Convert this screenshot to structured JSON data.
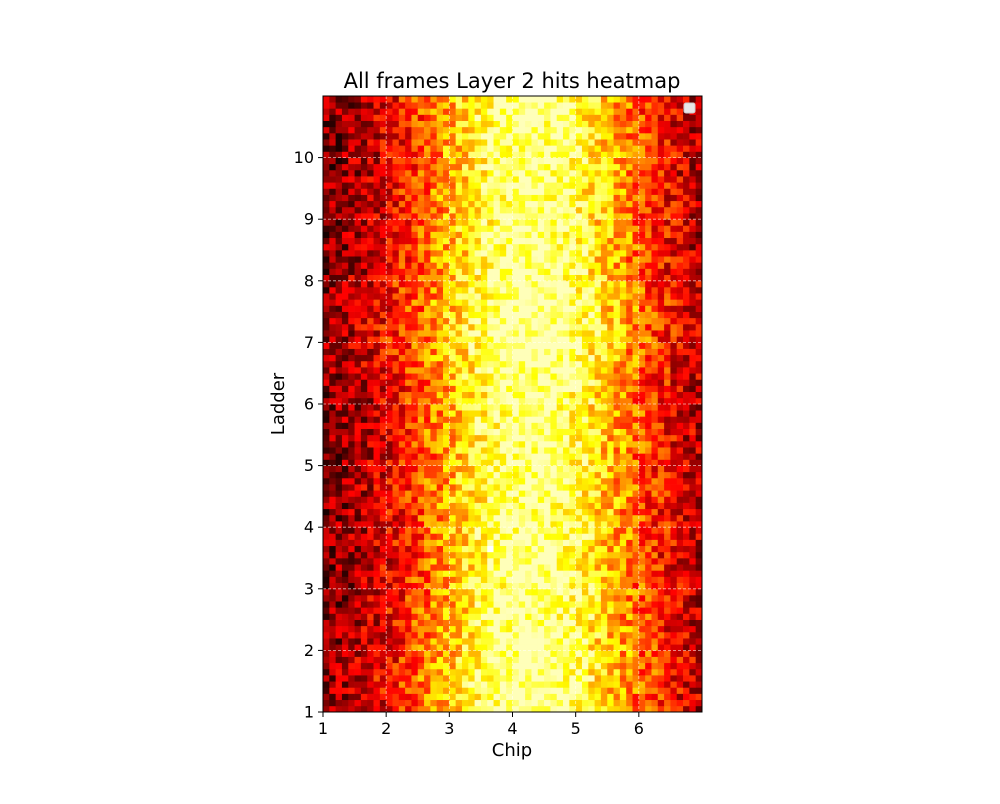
{
  "chart_data": {
    "type": "heatmap",
    "title": "All frames Layer 2 hits heatmap",
    "xlabel": "Chip",
    "ylabel": "Ladder",
    "xlim": [
      1,
      7
    ],
    "ylim": [
      1,
      11
    ],
    "x_ticks": [
      "1",
      "2",
      "3",
      "4",
      "5",
      "6"
    ],
    "y_ticks": [
      "1",
      "2",
      "3",
      "4",
      "5",
      "6",
      "7",
      "8",
      "9",
      "10"
    ],
    "grid": true,
    "colormap": "hot",
    "n_cols": 60,
    "n_rows": 100,
    "legend_placement": "top-right",
    "intensity_description": "counts normalized 0-1 per pixel; hottest near chip 4-5, coolest near chips 1 and 7",
    "hot_spots": [
      {
        "x": 3.65,
        "y": 3.65,
        "value": 1.0
      }
    ]
  },
  "colors": {
    "background": "#ffffff",
    "colormap_stops": [
      "#0b0000",
      "#ff0000",
      "#ffff00",
      "#ffffff"
    ],
    "grid": "#ffffff"
  }
}
